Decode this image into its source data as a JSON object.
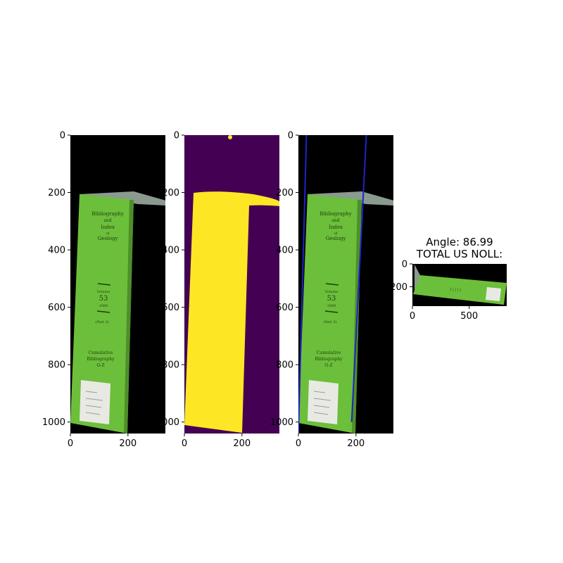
{
  "figure": {
    "panels": [
      {
        "id": "panel-1",
        "content": "photo",
        "xticks": [
          "0",
          "200"
        ],
        "yticks": [
          "0",
          "200",
          "400",
          "600",
          "800",
          "1000"
        ]
      },
      {
        "id": "panel-2",
        "content": "mask",
        "xticks": [
          "0",
          "200"
        ],
        "yticks": [
          "0",
          "200",
          "400",
          "600",
          "800",
          "1000"
        ]
      },
      {
        "id": "panel-3",
        "content": "photo-with-lines",
        "xticks": [
          "0",
          "200"
        ],
        "yticks": [
          "0",
          "200",
          "400",
          "600",
          "800",
          "1000"
        ]
      },
      {
        "id": "panel-4",
        "content": "rotated-photo",
        "title_line1": "Angle: 86.99",
        "title_line2": "TOTAL US NOLL:",
        "xticks": [
          "0",
          "500"
        ],
        "yticks": [
          "0",
          "200"
        ]
      }
    ],
    "book_text": {
      "title": [
        "Bibliography",
        "and",
        "Index",
        "of",
        "Geology"
      ],
      "volume": [
        "Volume",
        "53",
        "1989"
      ],
      "part": "(Part 3)",
      "footer": [
        "Cumulative",
        "Bibliography",
        "O-Z"
      ]
    },
    "colors": {
      "book_green": "#6cbf3a",
      "mask_background": "#440154",
      "mask_foreground": "#fde725",
      "line_color": "#1f23c9",
      "image_background": "#000000"
    }
  },
  "chart_data": {
    "type": "image-grid",
    "panels": [
      {
        "xlim": [
          0,
          330
        ],
        "ylim": [
          1040,
          0
        ],
        "xticks": [
          0,
          200
        ],
        "yticks": [
          0,
          200,
          400,
          600,
          800,
          1000
        ]
      },
      {
        "xlim": [
          0,
          330
        ],
        "ylim": [
          1040,
          0
        ],
        "xticks": [
          0,
          200
        ],
        "yticks": [
          0,
          200,
          400,
          600,
          800,
          1000
        ]
      },
      {
        "xlim": [
          0,
          330
        ],
        "ylim": [
          1040,
          0
        ],
        "xticks": [
          0,
          200
        ],
        "yticks": [
          0,
          200,
          400,
          600,
          800,
          1000
        ],
        "lines": [
          {
            "x": [
              28,
              0
            ],
            "y": [
              0,
              1040
            ]
          },
          {
            "x": [
              236,
              185
            ],
            "y": [
              0,
              1000
            ]
          }
        ]
      },
      {
        "xlim": [
          0,
          830
        ],
        "ylim": [
          370,
          0
        ],
        "xticks": [
          0,
          500
        ],
        "yticks": [
          0,
          200
        ]
      }
    ],
    "angle": 86.99
  }
}
